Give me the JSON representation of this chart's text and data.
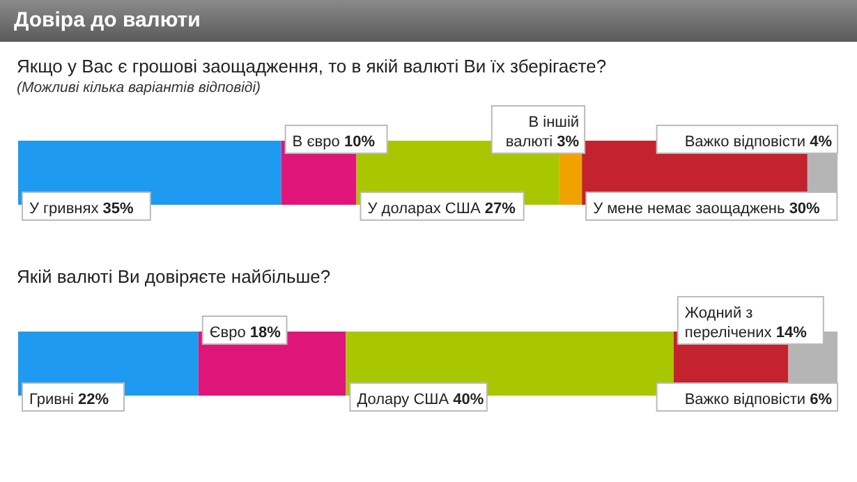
{
  "chart_data": [
    {
      "type": "bar",
      "orientation": "horizontal",
      "stacked": true,
      "title": "Довіра до валюти",
      "subtitle": "Якщо у Вас є грошові заощадження, то в якій валюті Ви їх зберігаєте?",
      "annotations": [
        "(Можливі кілька варіантів відповіді)"
      ],
      "categories": [
        null
      ],
      "series": [
        {
          "name": "У гривнях",
          "color": "#1e9bf0",
          "values": [
            35
          ],
          "value_labels": [
            "35%"
          ]
        },
        {
          "name": "В євро",
          "color": "#e0157a",
          "values": [
            10
          ],
          "value_labels": [
            "10%"
          ]
        },
        {
          "name": "У доларах США",
          "color": "#a9c700",
          "values": [
            27
          ],
          "value_labels": [
            "27%"
          ]
        },
        {
          "name": "В іншій валюті",
          "color": "#f0a300",
          "values": [
            3
          ],
          "value_labels": [
            "3%"
          ]
        },
        {
          "name": "У мене немає заощаджень",
          "color": "#c4222e",
          "values": [
            30
          ],
          "value_labels": [
            "30%"
          ]
        },
        {
          "name": "Важко відповісти",
          "color": "#b5b5b5",
          "values": [
            4
          ],
          "value_labels": [
            "4%"
          ]
        }
      ]
    },
    {
      "type": "bar",
      "orientation": "horizontal",
      "stacked": true,
      "subtitle": "Якій валюті Ви довіряєте найбільше?",
      "categories": [
        null
      ],
      "series": [
        {
          "name": "Гривні",
          "color": "#1e9bf0",
          "values": [
            22
          ],
          "value_labels": [
            "22%"
          ]
        },
        {
          "name": "Євро",
          "color": "#e0157a",
          "values": [
            18
          ],
          "value_labels": [
            "18%"
          ]
        },
        {
          "name": "Долару США",
          "color": "#a9c700",
          "values": [
            40
          ],
          "value_labels": [
            "40%"
          ]
        },
        {
          "name": "Жодний з перелічених",
          "color": "#c4222e",
          "values": [
            14
          ],
          "value_labels": [
            "14%"
          ]
        },
        {
          "name": "Важко відповісти",
          "color": "#b5b5b5",
          "values": [
            6
          ],
          "value_labels": [
            "6%"
          ]
        }
      ]
    }
  ]
}
